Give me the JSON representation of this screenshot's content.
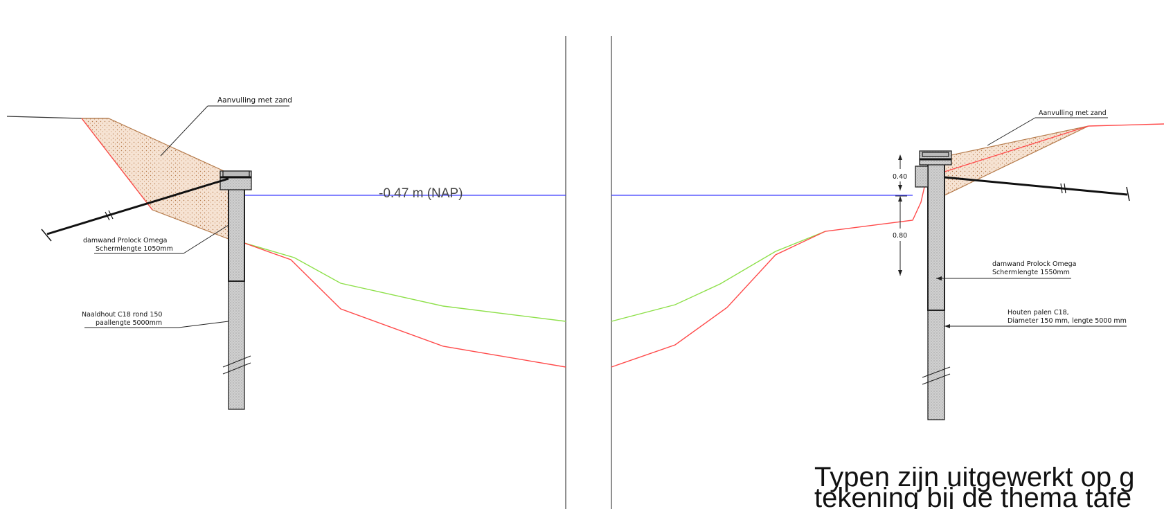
{
  "water_level": {
    "label": "-0.47 m (NAP)",
    "color": "#3a3aff"
  },
  "left_section": {
    "fill_label": "Aanvulling met zand",
    "sheet_label_line1": "damwand Prolock Omega",
    "sheet_label_line2": "Schermlengte 1050mm",
    "pile_label_line1": "Naaldhout C18 rond 150",
    "pile_label_line2": "paallengte 5000mm"
  },
  "right_section": {
    "fill_label": "Aanvulling met zand",
    "dim_upper": "0.40",
    "dim_lower": "0.80",
    "sheet_label_line1": "damwand Prolock Omega",
    "sheet_label_line2": "Schermlengte 1550mm",
    "pile_label_line1": "Houten palen C18,",
    "pile_label_line2": "Diameter 150 mm, lengte 5000 mm"
  },
  "profile_colors": {
    "design_green": "#8ee04a",
    "existing_red": "#ff4a4a",
    "sand": "#f6e3d3",
    "sand_edge": "#b57a4a"
  },
  "caption": {
    "line1": "Typen zijn uitgewerkt op g",
    "line2": "tekening bij de thema tafe"
  }
}
